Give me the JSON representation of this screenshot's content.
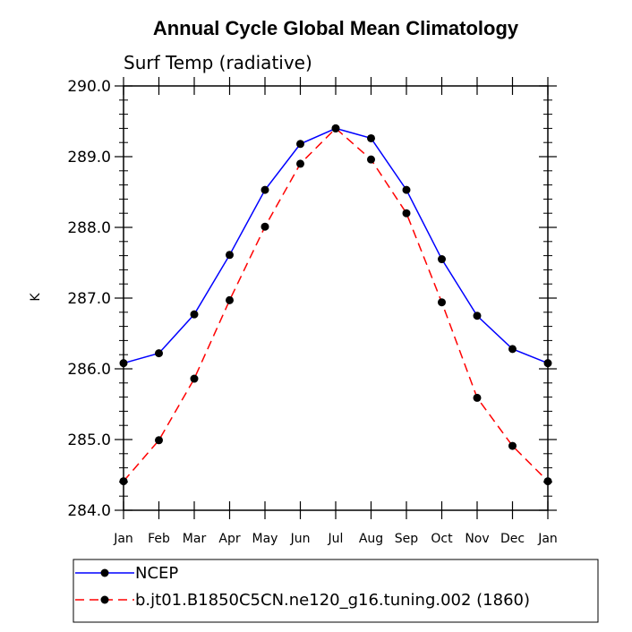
{
  "chart_data": {
    "type": "line",
    "title": "Annual Cycle Global Mean Climatology",
    "subtitle": "Surf Temp (radiative)",
    "xlabel": "",
    "ylabel": "K",
    "categories": [
      "Jan",
      "Feb",
      "Mar",
      "Apr",
      "May",
      "Jun",
      "Jul",
      "Aug",
      "Sep",
      "Oct",
      "Nov",
      "Dec",
      "Jan"
    ],
    "ylim": [
      284.0,
      290.0
    ],
    "yticks": [
      "284.0",
      "285.0",
      "286.0",
      "287.0",
      "288.0",
      "289.0",
      "290.0"
    ],
    "grid": false,
    "legend_position": "bottom-left, below plot",
    "series": [
      {
        "name": "NCEP",
        "color": "#0000ff",
        "dash": "solid",
        "marker": "filled-circle",
        "values": [
          286.08,
          286.22,
          286.77,
          287.61,
          288.53,
          289.18,
          289.4,
          289.26,
          288.53,
          287.55,
          286.75,
          286.28,
          286.08
        ]
      },
      {
        "name": "b.jt01.B1850C5CN.ne120_g16.tuning.002 (1860)",
        "color": "#ff0000",
        "dash": "dashed",
        "marker": "filled-circle",
        "values": [
          284.41,
          284.99,
          285.86,
          286.97,
          288.01,
          288.9,
          289.4,
          288.96,
          288.2,
          286.94,
          285.59,
          284.91,
          284.41
        ]
      }
    ]
  }
}
